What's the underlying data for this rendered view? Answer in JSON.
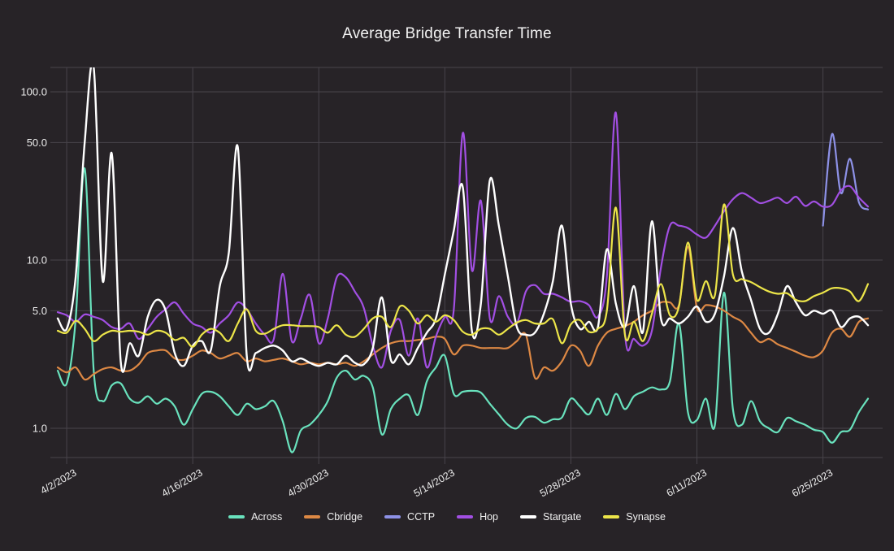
{
  "title": "Average Bridge Transfer Time",
  "colors": {
    "background": "#272327",
    "grid": "#48444b",
    "axis_text": "#ececec",
    "title_text": "#f2f2f2"
  },
  "y_axis": {
    "scale": "log",
    "ticks": [
      {
        "label": "100.0",
        "value": 100
      },
      {
        "label": "50.0",
        "value": 50
      },
      {
        "label": "10.0",
        "value": 10
      },
      {
        "label": "5.0",
        "value": 5
      },
      {
        "label": "1.0",
        "value": 1
      }
    ]
  },
  "x_axis": {
    "ticks": [
      {
        "label": "4/2/2023",
        "day": 1
      },
      {
        "label": "4/16/2023",
        "day": 15
      },
      {
        "label": "4/30/2023",
        "day": 29
      },
      {
        "label": "5/14/2023",
        "day": 43
      },
      {
        "label": "5/28/2023",
        "day": 57
      },
      {
        "label": "6/11/2023",
        "day": 71
      },
      {
        "label": "6/25/2023",
        "day": 85
      }
    ]
  },
  "chart_data": {
    "type": "line",
    "title": "Average Bridge Transfer Time",
    "y_scale": "log",
    "ylim": [
      0.67,
      147
    ],
    "x_start_date": "4/1/2023",
    "x_end_date": "6/30/2023",
    "x_unit": "day",
    "grid": true,
    "legend_position": "bottom",
    "series": [
      {
        "name": "Across",
        "color": "#69e2bd",
        "values": [
          2.2,
          1.85,
          4.5,
          35,
          2.2,
          1.45,
          1.8,
          1.85,
          1.5,
          1.42,
          1.55,
          1.4,
          1.5,
          1.35,
          1.05,
          1.3,
          1.6,
          1.65,
          1.55,
          1.35,
          1.2,
          1.4,
          1.3,
          1.35,
          1.45,
          1.1,
          0.72,
          0.97,
          1.05,
          1.2,
          1.45,
          2.0,
          2.2,
          1.95,
          2.05,
          1.75,
          0.92,
          1.3,
          1.5,
          1.57,
          1.2,
          1.9,
          2.3,
          2.7,
          1.6,
          1.65,
          1.67,
          1.63,
          1.4,
          1.21,
          1.05,
          1.0,
          1.15,
          1.17,
          1.08,
          1.13,
          1.16,
          1.5,
          1.35,
          1.21,
          1.5,
          1.2,
          1.6,
          1.3,
          1.55,
          1.65,
          1.75,
          1.7,
          1.9,
          4.2,
          1.25,
          1.12,
          1.5,
          1.05,
          6.4,
          1.3,
          1.05,
          1.45,
          1.1,
          1.0,
          0.95,
          1.15,
          1.1,
          1.05,
          0.98,
          0.95,
          0.82,
          0.95,
          0.98,
          1.25,
          1.5
        ]
      },
      {
        "name": "Cbridge",
        "color": "#dd8844",
        "values": [
          2.3,
          2.15,
          2.3,
          1.95,
          2.1,
          2.25,
          2.3,
          2.2,
          2.2,
          2.4,
          2.8,
          2.9,
          2.9,
          2.6,
          2.55,
          2.7,
          2.9,
          2.8,
          2.6,
          2.7,
          2.8,
          2.5,
          2.6,
          2.5,
          2.55,
          2.6,
          2.5,
          2.4,
          2.45,
          2.4,
          2.45,
          2.4,
          2.45,
          2.35,
          2.5,
          2.75,
          3.0,
          3.2,
          3.3,
          3.3,
          3.35,
          3.4,
          3.5,
          3.4,
          2.75,
          3.1,
          3.1,
          3.0,
          3.0,
          3.0,
          3.0,
          3.3,
          3.6,
          2.0,
          2.3,
          2.2,
          2.5,
          3.1,
          2.9,
          2.35,
          3.1,
          3.7,
          3.9,
          4.05,
          4.3,
          4.7,
          5.0,
          5.6,
          5.6,
          5.4,
          12.0,
          5.2,
          5.4,
          5.3,
          5.0,
          4.6,
          4.3,
          3.7,
          3.25,
          3.4,
          3.15,
          3.0,
          2.85,
          2.7,
          2.65,
          2.9,
          3.7,
          3.9,
          3.5,
          4.3,
          4.5
        ]
      },
      {
        "name": "CCTP",
        "color": "#8d91e6",
        "values": [
          null,
          null,
          null,
          null,
          null,
          null,
          null,
          null,
          null,
          null,
          null,
          null,
          null,
          null,
          null,
          null,
          null,
          null,
          null,
          null,
          null,
          null,
          null,
          null,
          null,
          null,
          null,
          null,
          null,
          null,
          null,
          null,
          null,
          null,
          null,
          null,
          null,
          null,
          null,
          null,
          null,
          null,
          null,
          null,
          null,
          null,
          null,
          null,
          null,
          null,
          null,
          null,
          null,
          null,
          null,
          null,
          null,
          null,
          null,
          null,
          null,
          null,
          null,
          null,
          null,
          null,
          null,
          null,
          null,
          null,
          null,
          null,
          null,
          null,
          null,
          null,
          null,
          null,
          null,
          null,
          null,
          null,
          null,
          null,
          null,
          16,
          56,
          25,
          40,
          22,
          20
        ]
      },
      {
        "name": "Hop",
        "color": "#a24fe3",
        "values": [
          4.9,
          4.7,
          4.3,
          4.75,
          4.6,
          4.4,
          4.0,
          3.9,
          4.2,
          3.4,
          3.9,
          4.6,
          5.1,
          5.6,
          4.8,
          4.2,
          4.0,
          3.7,
          4.2,
          4.7,
          5.6,
          5.1,
          4.2,
          3.6,
          3.4,
          8.3,
          3.3,
          4.5,
          6.2,
          3.2,
          4.5,
          7.9,
          7.9,
          6.5,
          5.2,
          3.1,
          2.3,
          3.8,
          4.4,
          2.7,
          4.5,
          2.3,
          3.5,
          4.6,
          5.1,
          57,
          8.7,
          22.5,
          4.5,
          6.1,
          4.6,
          4.2,
          6.5,
          7.1,
          6.3,
          6.3,
          6.0,
          5.65,
          5.7,
          5.4,
          4.6,
          8.0,
          75,
          3.7,
          3.4,
          3.1,
          3.8,
          9.0,
          16.0,
          16.0,
          15.5,
          14.2,
          13.6,
          16.0,
          19.5,
          23.0,
          25.0,
          23.5,
          21.8,
          22.5,
          23.5,
          21.8,
          23.8,
          21.0,
          22.3,
          20.8,
          21.3,
          26.0,
          27.5,
          23.5,
          20.8
        ]
      },
      {
        "name": "Stargate",
        "color": "#ffffff",
        "values": [
          4.5,
          3.9,
          8,
          50,
          140,
          7.5,
          43,
          2.5,
          3.2,
          2.7,
          4.6,
          5.8,
          5.0,
          2.8,
          2.35,
          3.1,
          3.3,
          2.9,
          7.0,
          11.0,
          47,
          2.7,
          2.8,
          3.0,
          3.1,
          2.9,
          2.5,
          2.6,
          2.45,
          2.35,
          2.45,
          2.4,
          2.7,
          2.45,
          2.4,
          3.0,
          6.0,
          2.55,
          2.75,
          2.4,
          3.0,
          3.7,
          4.5,
          8.2,
          15,
          27,
          3.8,
          5.5,
          29.8,
          16,
          8,
          4.0,
          3.6,
          3.7,
          4.8,
          7.5,
          16,
          5.5,
          3.9,
          4.3,
          4.0,
          11.6,
          5.5,
          4.0,
          7.0,
          3.75,
          17,
          4.5,
          4.5,
          4.2,
          4.6,
          5.3,
          4.3,
          4.8,
          8.0,
          15.5,
          8.5,
          5.8,
          3.9,
          3.7,
          4.8,
          7.0,
          5.6,
          4.7,
          5.0,
          4.8,
          5.0,
          4.0,
          4.5,
          4.6,
          4.1
        ]
      },
      {
        "name": "Synapse",
        "color": "#ece549",
        "values": [
          3.8,
          3.7,
          4.35,
          3.9,
          3.3,
          3.6,
          3.8,
          3.75,
          3.8,
          3.75,
          3.6,
          3.8,
          3.7,
          3.35,
          3.45,
          3.05,
          3.6,
          3.9,
          3.7,
          3.3,
          4.2,
          5.1,
          3.8,
          3.65,
          3.9,
          4.1,
          4.1,
          4.05,
          4.05,
          4.0,
          3.7,
          4.1,
          3.6,
          3.5,
          3.9,
          4.5,
          4.6,
          4.0,
          5.3,
          5.0,
          4.2,
          4.7,
          4.3,
          4.7,
          4.4,
          3.75,
          3.6,
          3.9,
          3.9,
          3.6,
          3.9,
          4.25,
          4.4,
          4.2,
          4.2,
          4.45,
          3.2,
          4.15,
          4.4,
          3.75,
          3.9,
          5.0,
          20.5,
          3.6,
          4.3,
          3.3,
          4.8,
          7.2,
          4.7,
          5.3,
          12.7,
          5.8,
          7.5,
          6.2,
          21.4,
          8.2,
          7.7,
          7.4,
          6.9,
          6.5,
          6.3,
          6.35,
          5.8,
          5.7,
          6.1,
          6.4,
          6.8,
          6.8,
          6.5,
          5.7,
          7.2
        ]
      }
    ]
  }
}
